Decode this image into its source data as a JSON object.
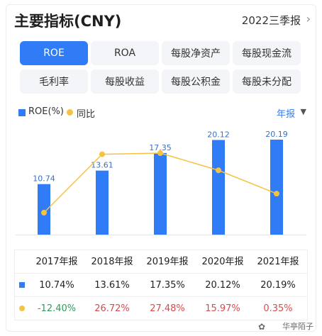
{
  "header": {
    "title": "主要指标(CNY)",
    "period": "2022三季报",
    "chevron_icon": "chevron-right-icon"
  },
  "tabs": [
    {
      "label": "ROE",
      "active": true
    },
    {
      "label": "ROA",
      "active": false
    },
    {
      "label": "每股净资产",
      "active": false
    },
    {
      "label": "每股现金流",
      "active": false
    },
    {
      "label": "毛利率",
      "active": false
    },
    {
      "label": "每股收益",
      "active": false
    },
    {
      "label": "每股公积金",
      "active": false
    },
    {
      "label": "每股未分配",
      "active": false
    }
  ],
  "legend": {
    "bar_label": "ROE(%)",
    "line_label": "同比"
  },
  "frequency": {
    "label": "年报",
    "caret_icon": "caret-down-icon"
  },
  "colors": {
    "bar": "#2f7cf6",
    "line": "#f5c242",
    "positive": "#d94b4b",
    "negative": "#2e9d5c",
    "accent": "#2f7cf6"
  },
  "chart_data": {
    "type": "bar",
    "categories": [
      "2017年报",
      "2018年报",
      "2019年报",
      "2020年报",
      "2021年报"
    ],
    "series": [
      {
        "name": "ROE(%)",
        "type": "bar",
        "values": [
          10.74,
          13.61,
          17.35,
          20.12,
          20.19
        ]
      },
      {
        "name": "同比",
        "type": "line",
        "values": [
          -12.4,
          26.72,
          27.48,
          15.97,
          0.35
        ]
      }
    ],
    "bar_labels": [
      "10.74",
      "13.61",
      "17.35",
      "20.12",
      "20.19"
    ],
    "bar_axis_range": [
      0,
      20.19
    ],
    "line_axis_range": [
      -12.4,
      27.48
    ],
    "grid": false,
    "legend_position": "top-left"
  },
  "table": {
    "headers": [
      "2017年报",
      "2018年报",
      "2019年报",
      "2020年报",
      "2021年报"
    ],
    "roe_row": [
      "10.74%",
      "13.61%",
      "17.35%",
      "20.12%",
      "20.19%"
    ],
    "yoy_row": [
      "-12.40%",
      "26.72%",
      "27.48%",
      "15.97%",
      "0.35%"
    ]
  },
  "watermark": {
    "text": "华亭陌子",
    "icon": "wechat-icon"
  }
}
